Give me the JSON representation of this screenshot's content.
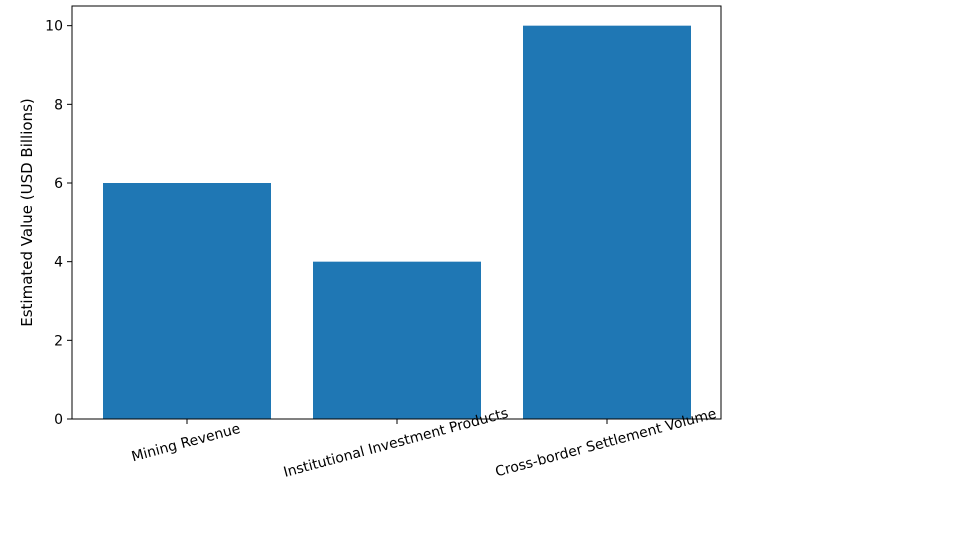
{
  "chart_data": {
    "type": "bar",
    "title": "",
    "xlabel": "",
    "ylabel": "Estimated Value (USD Billions)",
    "categories": [
      "Mining Revenue",
      "Institutional Investment Products",
      "Cross-border Settlement Volume"
    ],
    "values": [
      6,
      4,
      10
    ],
    "ylim": [
      0,
      10.5
    ],
    "yticks": [
      0,
      2,
      4,
      6,
      8,
      10
    ],
    "grid": false,
    "legend": "none",
    "bar_color": "#1f77b4"
  }
}
